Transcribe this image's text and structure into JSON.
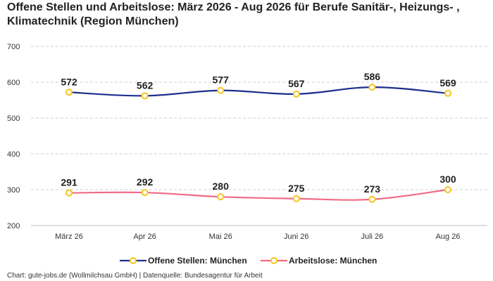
{
  "chart_data": {
    "type": "line",
    "title": "Offene Stellen und Arbeitslose: März 2026 - Aug 2026 für Berufe Sanitär-, Heizungs- , Klimatechnik (Region München)",
    "categories": [
      "März 26",
      "Apr 26",
      "Mai 26",
      "Juni 26",
      "Juli 26",
      "Aug 26"
    ],
    "series": [
      {
        "name": "Offene Stellen: München",
        "values": [
          572,
          562,
          577,
          567,
          586,
          569
        ],
        "color": "#1c2f8f"
      },
      {
        "name": "Arbeitslose: München",
        "values": [
          291,
          292,
          280,
          275,
          273,
          300
        ],
        "color": "#f06b84"
      }
    ],
    "yticks": [
      200,
      300,
      400,
      500,
      600,
      700
    ],
    "ylim": [
      200,
      700
    ],
    "grid": true,
    "legend_position": "bottom",
    "marker_color": "#f5c518",
    "xlabel": "",
    "ylabel": ""
  },
  "footer": "Chart: gute-jobs.de (Wollmilchsau GmbH) | Datenquelle: Bundesagentur für Arbeit"
}
